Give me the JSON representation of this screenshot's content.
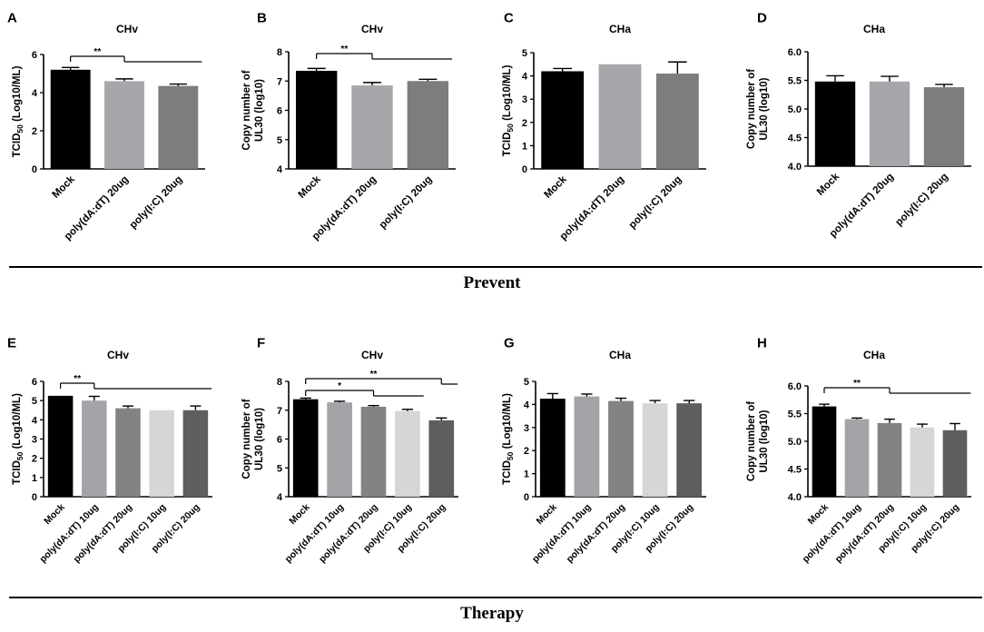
{
  "sections": [
    {
      "label": "Prevent"
    },
    {
      "label": "Therapy"
    }
  ],
  "colors": {
    "mock": "#000000",
    "polydAdT10": "#a3a3a8",
    "polydAdT20_prevent": "#a7a7ab",
    "polyIC20_prevent": "#7d7d7d",
    "polydAdT20_therapy": "#838383",
    "polyIC10": "#d6d6d6",
    "polyIC20_therapy": "#5e5e5e"
  },
  "chart_data": [
    {
      "panel": "A",
      "type": "bar",
      "title": "CHv",
      "ylabel": [
        "TCID",
        "50",
        " (Log10/ML)"
      ],
      "categories": [
        "Mock",
        "poly(dA:dT) 20ug",
        "poly(I:C) 20ug"
      ],
      "values": [
        5.2,
        4.6,
        4.35
      ],
      "errors": [
        0.12,
        0.12,
        0.1
      ],
      "colors": [
        "#000000",
        "#a7a7ab",
        "#7d7d7d"
      ],
      "ylim": [
        0,
        6
      ],
      "ticks": [
        0,
        2,
        4,
        6
      ],
      "significance": [
        {
          "label": "**",
          "from": 0,
          "to": [
            1,
            2
          ]
        }
      ]
    },
    {
      "panel": "B",
      "type": "bar",
      "title": "CHv",
      "ylabel": [
        "Copy number of",
        "UL30 (log10)"
      ],
      "categories": [
        "Mock",
        "poly(dA:dT) 20ug",
        "poly(I:C) 20ug"
      ],
      "values": [
        7.35,
        6.85,
        7.0
      ],
      "errors": [
        0.08,
        0.1,
        0.06
      ],
      "colors": [
        "#000000",
        "#a7a7ab",
        "#7d7d7d"
      ],
      "ylim": [
        4,
        8
      ],
      "ticks": [
        4,
        5,
        6,
        7,
        8
      ],
      "significance": [
        {
          "label": "**",
          "from": 0,
          "to": [
            1,
            2
          ]
        }
      ]
    },
    {
      "panel": "C",
      "type": "bar",
      "title": "CHa",
      "ylabel": [
        "TCID",
        "50",
        " (Log10/ML)"
      ],
      "categories": [
        "Mock",
        "poly(dA:dT) 20ug",
        "poly(I:C) 20ug"
      ],
      "values": [
        4.2,
        4.5,
        4.1
      ],
      "errors": [
        0.12,
        0,
        0.5
      ],
      "colors": [
        "#000000",
        "#a7a7ab",
        "#7d7d7d"
      ],
      "ylim": [
        0,
        5
      ],
      "ticks": [
        0,
        1,
        2,
        3,
        4,
        5
      ],
      "significance": []
    },
    {
      "panel": "D",
      "type": "bar",
      "title": "CHa",
      "ylabel": [
        "Copy number of",
        "UL30 (log10)"
      ],
      "categories": [
        "Mock",
        "poly(dA:dT) 20ug",
        "poly(I:C) 20ug"
      ],
      "values": [
        5.48,
        5.48,
        5.38
      ],
      "errors": [
        0.1,
        0.09,
        0.05
      ],
      "colors": [
        "#000000",
        "#a7a7ab",
        "#7d7d7d"
      ],
      "ylim": [
        4.0,
        6.0
      ],
      "ticks": [
        "4.0",
        "4.5",
        "5.0",
        "5.5",
        "6.0"
      ],
      "significance": []
    },
    {
      "panel": "E",
      "type": "bar",
      "title": "CHv",
      "ylabel": [
        "TCID",
        "50",
        " (Log10/ML)"
      ],
      "categories": [
        "Mock",
        "poly(dA:dT) 10ug",
        "poly(dA:dT) 20ug",
        "poly(I:C) 10ug",
        "poly(I:C) 20ug"
      ],
      "values": [
        5.25,
        5.0,
        4.6,
        4.5,
        4.5
      ],
      "errors": [
        0,
        0.22,
        0.12,
        0,
        0.22
      ],
      "colors": [
        "#000000",
        "#a3a3a8",
        "#838383",
        "#d6d6d6",
        "#5e5e5e"
      ],
      "ylim": [
        0,
        6
      ],
      "ticks": [
        0,
        1,
        2,
        3,
        4,
        5,
        6
      ],
      "significance": [
        {
          "label": "**",
          "from": 0,
          "to": [
            1,
            4
          ]
        }
      ]
    },
    {
      "panel": "F",
      "type": "bar",
      "title": "CHv",
      "ylabel": [
        "Copy number of",
        "UL30 (log10)"
      ],
      "categories": [
        "Mock",
        "poly(dA:dT) 10ug",
        "poly(dA:dT) 20ug",
        "poly(I:C) 10ug",
        "poly(I:C) 20ug"
      ],
      "values": [
        7.38,
        7.27,
        7.12,
        6.97,
        6.65
      ],
      "errors": [
        0.04,
        0.04,
        0.04,
        0.06,
        0.08
      ],
      "colors": [
        "#000000",
        "#a3a3a8",
        "#838383",
        "#d6d6d6",
        "#5e5e5e"
      ],
      "ylim": [
        4,
        8
      ],
      "ticks": [
        4,
        5,
        6,
        7,
        8
      ],
      "significance": [
        {
          "label": "**",
          "from": 0,
          "to": [
            4,
            4
          ]
        },
        {
          "label": "*",
          "from": 0,
          "to": [
            2,
            3
          ]
        }
      ]
    },
    {
      "panel": "G",
      "type": "bar",
      "title": "CHa",
      "ylabel": [
        "TCID",
        "50",
        " (Log10/ML)"
      ],
      "categories": [
        "Mock",
        "poly(dA:dT) 10ug",
        "poly(dA:dT) 20ug",
        "poly(I:C) 10ug",
        "poly(I:C) 20ug"
      ],
      "values": [
        4.25,
        4.35,
        4.15,
        4.05,
        4.05
      ],
      "errors": [
        0.22,
        0.1,
        0.12,
        0.12,
        0.12
      ],
      "colors": [
        "#000000",
        "#a3a3a8",
        "#838383",
        "#d6d6d6",
        "#5e5e5e"
      ],
      "ylim": [
        0,
        5
      ],
      "ticks": [
        0,
        1,
        2,
        3,
        4,
        5
      ],
      "significance": []
    },
    {
      "panel": "H",
      "type": "bar",
      "title": "CHa",
      "ylabel": [
        "Copy number of",
        "UL30 (log10)"
      ],
      "categories": [
        "Mock",
        "poly(dA:dT) 10ug",
        "poly(dA:dT) 20ug",
        "poly(I:C) 10ug",
        "poly(I:C) 20ug"
      ],
      "values": [
        5.63,
        5.4,
        5.33,
        5.25,
        5.2
      ],
      "errors": [
        0.04,
        0.02,
        0.07,
        0.06,
        0.12
      ],
      "colors": [
        "#000000",
        "#a3a3a8",
        "#838383",
        "#d6d6d6",
        "#5e5e5e"
      ],
      "ylim": [
        4.0,
        6.0
      ],
      "ticks": [
        "4.0",
        "4.5",
        "5.0",
        "5.5",
        "6.0"
      ],
      "significance": [
        {
          "label": "**",
          "from": 0,
          "to": [
            2,
            4
          ]
        }
      ]
    }
  ]
}
